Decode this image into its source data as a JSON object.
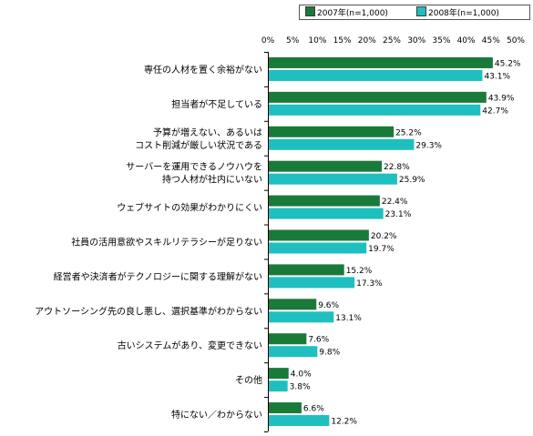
{
  "chart_data": {
    "type": "bar",
    "orientation": "horizontal",
    "categories": [
      [
        "専任の人材を置く余裕がない"
      ],
      [
        "担当者が不足している"
      ],
      [
        "予算が増えない、あるいは",
        "コスト削減が厳しい状況である"
      ],
      [
        "サーバーを運用できるノウハウを",
        "持つ人材が社内にいない"
      ],
      [
        "ウェブサイトの効果がわかりにくい"
      ],
      [
        "社員の活用意欲やスキルリテラシーが足りない"
      ],
      [
        "経営者や決済者がテクノロジーに関する理解がない"
      ],
      [
        "アウトソーシング先の良し悪し、選択基準がわからない"
      ],
      [
        "古いシステムがあり、変更できない"
      ],
      [
        "その他"
      ],
      [
        "特にない／わからない"
      ]
    ],
    "series": [
      {
        "name": "2007年(n=1,000)",
        "color": "#1a7a3a",
        "values": [
          45.2,
          43.9,
          25.2,
          22.8,
          22.4,
          20.2,
          15.2,
          9.6,
          7.6,
          4.0,
          6.6
        ],
        "labels": [
          "45.2%",
          "43.9%",
          "25.2%",
          "22.8%",
          "22.4%",
          "20.2%",
          "15.2%",
          "9.6%",
          "7.6%",
          "4.0%",
          "6.6%"
        ]
      },
      {
        "name": "2008年(n=1,000)",
        "color": "#1fbfbf",
        "values": [
          43.1,
          42.7,
          29.3,
          25.9,
          23.1,
          19.7,
          17.3,
          13.1,
          9.8,
          3.8,
          12.2
        ],
        "labels": [
          "43.1%",
          "42.7%",
          "29.3%",
          "25.9%",
          "23.1%",
          "19.7%",
          "17.3%",
          "13.1%",
          "9.8%",
          "3.8%",
          "12.2%"
        ]
      }
    ],
    "xlim": [
      0,
      50
    ],
    "xticks": [
      "0%",
      "5%",
      "10%",
      "15%",
      "20%",
      "25%",
      "30%",
      "35%",
      "40%",
      "45%",
      "50%"
    ],
    "xtick_values": [
      0,
      5,
      10,
      15,
      20,
      25,
      30,
      35,
      40,
      45,
      50
    ],
    "title": "",
    "xlabel": "",
    "ylabel": "",
    "legend": "top-right",
    "grid": false
  }
}
